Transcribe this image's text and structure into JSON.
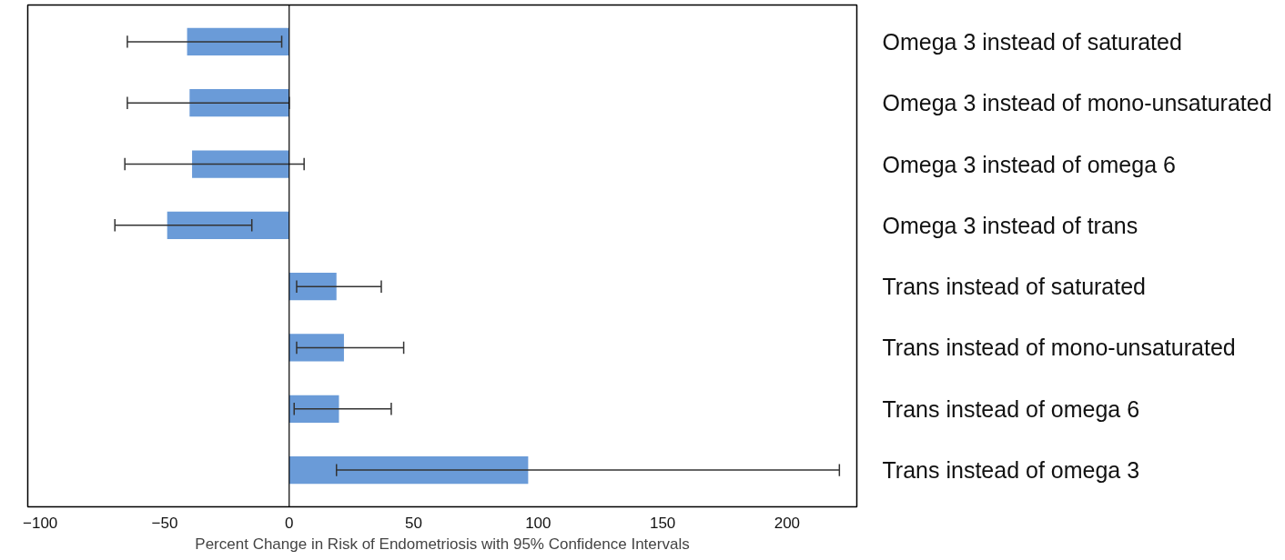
{
  "chart_data": {
    "type": "bar",
    "orientation": "horizontal",
    "xlabel": "Percent Change in Risk of Endometriosis with 95% Confidence Intervals",
    "categories": [
      "Omega 3 instead of saturated",
      "Omega 3 instead of mono-unsaturated",
      "Omega 3 instead of omega 6",
      "Omega 3 instead of trans",
      "Trans instead of saturated",
      "Trans instead of mono-unsaturated",
      "Trans instead of omega 6",
      "Trans instead of omega 3"
    ],
    "values": [
      -41,
      -40,
      -39,
      -49,
      19,
      22,
      20,
      96
    ],
    "errors": [
      [
        -65,
        -3
      ],
      [
        -65,
        0
      ],
      [
        -66,
        6
      ],
      [
        -70,
        -15
      ],
      [
        3,
        37
      ],
      [
        3,
        46
      ],
      [
        2,
        41
      ],
      [
        19,
        221
      ]
    ],
    "color": "#6a9bd8",
    "xlim": [
      -105,
      228
    ],
    "xticks": [
      -100,
      -50,
      0,
      50,
      100,
      150,
      200
    ],
    "grid": false,
    "ref_lines": [
      {
        "axis": "x",
        "value": 0,
        "color": "#000000"
      }
    ]
  }
}
